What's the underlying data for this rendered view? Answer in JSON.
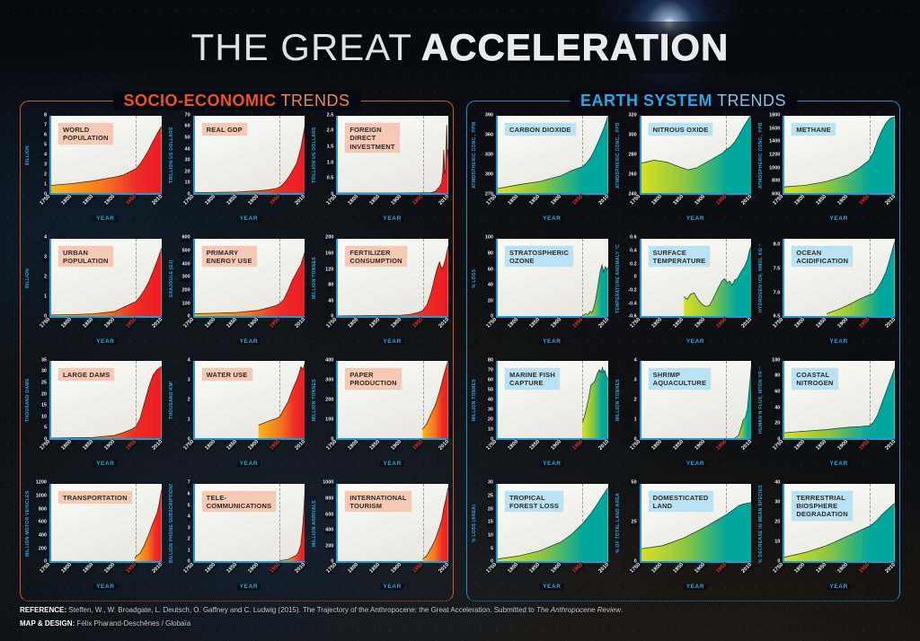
{
  "title": {
    "prefix": "THE GREAT",
    "emphasis": "ACCELERATION"
  },
  "sections": [
    {
      "id": "socio",
      "title_bold": "SOCIO-ECONOMIC",
      "title_light": "TRENDS",
      "accent": "#e8571c",
      "chip_bg": "#f5c9b3",
      "fill_stops": [
        "#fcb61a",
        "#f4711f",
        "#ec1c24"
      ]
    },
    {
      "id": "earth",
      "title_bold": "EARTH SYSTEM",
      "title_light": "TRENDS",
      "accent": "#1b9cd8",
      "chip_bg": "#b9e2f4",
      "fill_stops": [
        "#d9e021",
        "#8cc63f",
        "#00a79d"
      ]
    }
  ],
  "axis": {
    "x_label": "YEAR",
    "x_ticks": [
      1750,
      1800,
      1850,
      1900,
      1950,
      2010
    ],
    "x_range": [
      1750,
      2010
    ],
    "highlight_year": 1950,
    "highlight_color": "#ef3524",
    "dashed_line_year": 1950
  },
  "footer": {
    "ref_label": "REFERENCE:",
    "ref_text": " Steffen, W., W. Broadgate, L. Deutsch, O. Gaffney and C. Ludwig (2015). The Trajectory of the Anthropocene: the Great Acceleration. Submitted to ",
    "ref_italic": "The Anthropocene Review",
    "ref_end": ".",
    "design_label": "MAP & DESIGN:",
    "design_text": " Félix Pharand-Deschênes / Globaïa"
  },
  "chart_data": [
    {
      "type": "area",
      "panel": "socio",
      "title": "WORLD\nPOPULATION",
      "ylabel": "BILLION",
      "ylim": [
        0,
        8
      ],
      "yticks": [
        "0",
        "1",
        "2",
        "3",
        "4",
        "5",
        "6",
        "7",
        "8"
      ],
      "x": [
        1750,
        1800,
        1850,
        1900,
        1920,
        1950,
        1960,
        1970,
        1980,
        1990,
        2000,
        2010
      ],
      "y": [
        0.79,
        0.98,
        1.26,
        1.65,
        1.86,
        2.52,
        3.02,
        3.7,
        4.45,
        5.33,
        6.14,
        6.9
      ]
    },
    {
      "type": "area",
      "panel": "socio",
      "title": "REAL GDP",
      "ylabel": "TRILLION US DOLLARS",
      "ylim": [
        0,
        70
      ],
      "yticks": [
        "0",
        "10",
        "20",
        "30",
        "40",
        "50",
        "60",
        "70"
      ],
      "x": [
        1750,
        1800,
        1850,
        1900,
        1920,
        1940,
        1950,
        1960,
        1970,
        1980,
        1990,
        2000,
        2010
      ],
      "y": [
        0.4,
        0.6,
        0.9,
        2.0,
        2.7,
        4.0,
        5.3,
        8.8,
        13.8,
        20,
        27,
        41,
        62
      ]
    },
    {
      "type": "area",
      "panel": "socio",
      "title": "FOREIGN\nDIRECT\nINVESTMENT",
      "ylabel": "TRILLION US DOLLARS",
      "ylim": [
        0,
        2.5
      ],
      "yticks": [
        "0",
        "0.5",
        "1.0",
        "1.5",
        "2.0",
        "2.5"
      ],
      "x": [
        1750,
        1900,
        1950,
        1970,
        1980,
        1990,
        1995,
        1998,
        2000,
        2002,
        2004,
        2007,
        2009,
        2010
      ],
      "y": [
        0,
        0,
        0.005,
        0.01,
        0.05,
        0.2,
        0.33,
        0.7,
        1.4,
        0.6,
        0.75,
        2.2,
        1.15,
        1.4
      ]
    },
    {
      "type": "area",
      "panel": "socio",
      "title": "URBAN\nPOPULATION",
      "ylabel": "BILLION",
      "ylim": [
        0,
        4
      ],
      "yticks": [
        "0",
        "1",
        "2",
        "3",
        "4"
      ],
      "x": [
        1750,
        1800,
        1850,
        1900,
        1950,
        1960,
        1970,
        1980,
        1990,
        2000,
        2010
      ],
      "y": [
        0.05,
        0.07,
        0.11,
        0.24,
        0.75,
        1.02,
        1.35,
        1.75,
        2.29,
        2.86,
        3.5
      ]
    },
    {
      "type": "area",
      "panel": "socio",
      "title": "PRIMARY\nENERGY USE",
      "ylabel": "EXAJOULE (EJ)",
      "ylim": [
        0,
        600
      ],
      "yticks": [
        "0",
        "100",
        "200",
        "300",
        "400",
        "500",
        "600"
      ],
      "x": [
        1750,
        1800,
        1850,
        1900,
        1925,
        1940,
        1950,
        1960,
        1970,
        1980,
        1990,
        2000,
        2010
      ],
      "y": [
        18,
        22,
        28,
        44,
        65,
        80,
        95,
        130,
        200,
        280,
        340,
        400,
        505
      ]
    },
    {
      "type": "area",
      "panel": "socio",
      "title": "FERTILIZER\nCONSUMPTION",
      "ylabel": "MILLION TONNES",
      "ylim": [
        0,
        200
      ],
      "yticks": [
        "0",
        "40",
        "80",
        "120",
        "160",
        "200"
      ],
      "x": [
        1750,
        1900,
        1920,
        1940,
        1950,
        1960,
        1970,
        1980,
        1985,
        1990,
        1995,
        2000,
        2005,
        2010
      ],
      "y": [
        0,
        2,
        4,
        9,
        14,
        28,
        60,
        105,
        125,
        140,
        122,
        132,
        152,
        180
      ]
    },
    {
      "type": "area",
      "panel": "socio",
      "title": "LARGE DAMS",
      "ylabel": "THOUSAND DAMS",
      "ylim": [
        0,
        35
      ],
      "yticks": [
        "0",
        "5",
        "10",
        "15",
        "20",
        "25",
        "30",
        "35"
      ],
      "x": [
        1750,
        1850,
        1900,
        1920,
        1940,
        1950,
        1960,
        1970,
        1980,
        1990,
        2000,
        2010
      ],
      "y": [
        0,
        0.3,
        1.2,
        2.5,
        4,
        5.2,
        9,
        16,
        23,
        28.5,
        31,
        32.5
      ]
    },
    {
      "type": "area",
      "panel": "socio",
      "title": "WATER USE",
      "ylabel": "THOUSAND KM³",
      "ylim": [
        0,
        4
      ],
      "yticks": [
        "0",
        "1",
        "2",
        "3",
        "4"
      ],
      "x": [
        1900,
        1920,
        1940,
        1950,
        1960,
        1970,
        1980,
        1990,
        1995,
        2000,
        2005,
        2010
      ],
      "y": [
        0.67,
        0.85,
        1.0,
        1.1,
        1.5,
        1.9,
        2.5,
        3.0,
        3.3,
        3.7,
        3.55,
        3.95
      ]
    },
    {
      "type": "area",
      "panel": "socio",
      "title": "PAPER\nPRODUCTION",
      "ylabel": "MILLION TONNES",
      "ylim": [
        0,
        400
      ],
      "yticks": [
        "0",
        "100",
        "200",
        "300",
        "400"
      ],
      "x": [
        1950,
        1960,
        1970,
        1980,
        1990,
        2000,
        2010
      ],
      "y": [
        45,
        75,
        125,
        170,
        240,
        325,
        400
      ]
    },
    {
      "type": "area",
      "panel": "socio",
      "title": "TRANSPORTATION",
      "ylabel": "MILLION MOTOR VEHICLES",
      "ylim": [
        0,
        1200
      ],
      "yticks": [
        "0",
        "200",
        "400",
        "600",
        "800",
        "1000",
        "1200"
      ],
      "x": [
        1948,
        1950,
        1960,
        1970,
        1980,
        1990,
        2000,
        2005,
        2010
      ],
      "y": [
        40,
        70,
        125,
        250,
        410,
        590,
        750,
        900,
        1100
      ]
    },
    {
      "type": "area",
      "panel": "socio",
      "title": "TELE-\nCOMMUNICATIONS",
      "ylabel": "BILLION PHONE SUBSCRIPTIONS",
      "ylim": [
        0,
        7
      ],
      "yticks": [
        "0",
        "1",
        "2",
        "3",
        "4",
        "5",
        "6",
        "7"
      ],
      "x": [
        1950,
        1960,
        1970,
        1980,
        1990,
        1995,
        2000,
        2005,
        2010
      ],
      "y": [
        0.05,
        0.09,
        0.15,
        0.35,
        0.55,
        0.9,
        1.5,
        3.5,
        6.6
      ]
    },
    {
      "type": "area",
      "panel": "socio",
      "title": "INTERNATIONAL\nTOURISM",
      "ylabel": "MILLION ARRIVALS",
      "ylim": [
        0,
        1000
      ],
      "yticks": [
        "0",
        "200",
        "400",
        "600",
        "800",
        "1000"
      ],
      "x": [
        1950,
        1960,
        1970,
        1980,
        1990,
        1995,
        2000,
        2005,
        2010
      ],
      "y": [
        25,
        70,
        170,
        280,
        440,
        530,
        690,
        800,
        950
      ]
    },
    {
      "type": "area",
      "panel": "earth",
      "title": "CARBON DIOXIDE",
      "ylabel": "ATMOSPHERIC CONC., PPM",
      "ylim": [
        270,
        390
      ],
      "yticks": [
        "270",
        "300",
        "330",
        "360",
        "390"
      ],
      "x": [
        1750,
        1800,
        1850,
        1900,
        1925,
        1950,
        1960,
        1970,
        1980,
        1990,
        2000,
        2010
      ],
      "y": [
        277,
        283,
        288,
        297,
        305,
        311,
        317,
        326,
        339,
        354,
        370,
        389
      ]
    },
    {
      "type": "area",
      "panel": "earth",
      "title": "NITROUS OXIDE",
      "ylabel": "ATMOSPHERIC CONC., PPB",
      "ylim": [
        240,
        320
      ],
      "yticks": [
        "240",
        "260",
        "280",
        "300",
        "320"
      ],
      "x": [
        1750,
        1780,
        1810,
        1840,
        1860,
        1880,
        1900,
        1920,
        1940,
        1950,
        1960,
        1970,
        1980,
        1990,
        2000,
        2010
      ],
      "y": [
        271,
        274,
        272,
        267,
        264,
        266,
        271,
        276,
        281,
        285,
        288,
        293,
        300,
        308,
        315,
        322
      ]
    },
    {
      "type": "area",
      "panel": "earth",
      "title": "METHANE",
      "ylabel": "ATMOSPHERIC CONC., PPB",
      "ylim": [
        600,
        1800
      ],
      "yticks": [
        "600",
        "800",
        "1000",
        "1200",
        "1400",
        "1600",
        "1800"
      ],
      "x": [
        1750,
        1800,
        1850,
        1900,
        1925,
        1950,
        1960,
        1970,
        1980,
        1990,
        2000,
        2010
      ],
      "y": [
        695,
        720,
        780,
        880,
        980,
        1110,
        1230,
        1420,
        1570,
        1690,
        1760,
        1780
      ]
    },
    {
      "type": "area",
      "panel": "earth",
      "title": "STRATOSPHERIC\nOZONE",
      "ylabel": "% LOSS",
      "ylim": [
        0,
        100
      ],
      "yticks": [
        "0",
        "20",
        "40",
        "60",
        "80",
        "100"
      ],
      "x": [
        1950,
        1958,
        1963,
        1968,
        1972,
        1976,
        1980,
        1984,
        1988,
        1992,
        1996,
        2000,
        2004,
        2008,
        2010
      ],
      "y": [
        0,
        3,
        1.5,
        6,
        4,
        10,
        18,
        30,
        45,
        58,
        66,
        57,
        64,
        60,
        63
      ]
    },
    {
      "type": "area",
      "panel": "earth",
      "title": "SURFACE\nTEMPERATURE",
      "ylabel": "TEMPERATURE ANOMALY °C",
      "ylim": [
        -0.6,
        0.6
      ],
      "yticks": [
        "-0.6",
        "-0.4",
        "-0.2",
        "0",
        "0.2",
        "0.4",
        "0.6"
      ],
      "x": [
        1850,
        1858,
        1866,
        1874,
        1882,
        1890,
        1900,
        1910,
        1920,
        1930,
        1940,
        1946,
        1952,
        1958,
        1964,
        1970,
        1976,
        1982,
        1988,
        1994,
        2000,
        2005,
        2010
      ],
      "y": [
        -0.3,
        -0.34,
        -0.26,
        -0.24,
        -0.33,
        -0.4,
        -0.45,
        -0.44,
        -0.32,
        -0.18,
        -0.05,
        -0.02,
        -0.08,
        -0.06,
        -0.12,
        -0.04,
        -0.02,
        0.05,
        0.12,
        0.18,
        0.28,
        0.42,
        0.5
      ]
    },
    {
      "type": "area",
      "panel": "earth",
      "title": "OCEAN\nACIDIFICATION",
      "ylabel": "HYDROGEN ION, NMOL KG⁻¹",
      "ylim": [
        6.5,
        8.15
      ],
      "yticks": [
        "6.5",
        "7.0",
        "7.5",
        "8.0"
      ],
      "x": [
        1850,
        1875,
        1900,
        1925,
        1950,
        1960,
        1970,
        1980,
        1990,
        2000,
        2010
      ],
      "y": [
        6.55,
        6.63,
        6.73,
        6.85,
        6.95,
        6.98,
        7.1,
        7.25,
        7.45,
        7.75,
        8.08
      ]
    },
    {
      "type": "area",
      "panel": "earth",
      "title": "MARINE FISH\nCAPTURE",
      "ylabel": "MILLION TONNES",
      "ylim": [
        0,
        80
      ],
      "yticks": [
        "0",
        "10",
        "20",
        "30",
        "40",
        "50",
        "60",
        "70",
        "80"
      ],
      "x": [
        1950,
        1955,
        1960,
        1965,
        1970,
        1975,
        1980,
        1985,
        1990,
        1994,
        1997,
        2000,
        2003,
        2006,
        2010
      ],
      "y": [
        16,
        23,
        32,
        42,
        55,
        57,
        60,
        67,
        71,
        68,
        73,
        68,
        70,
        64,
        62
      ]
    },
    {
      "type": "area",
      "panel": "earth",
      "title": "SHRIMP\nAQUACULTURE",
      "ylabel": "MILLION TONNES",
      "ylim": [
        0,
        4
      ],
      "yticks": [
        "0",
        "1",
        "2",
        "3",
        "4"
      ],
      "x": [
        1970,
        1975,
        1980,
        1985,
        1990,
        1995,
        2000,
        2005,
        2010
      ],
      "y": [
        0.02,
        0.06,
        0.18,
        0.55,
        0.95,
        1.05,
        1.5,
        2.7,
        3.9
      ]
    },
    {
      "type": "area",
      "panel": "earth",
      "title": "COASTAL\nNITROGEN",
      "ylabel": "HUMAN N FLUX, MTON YR⁻¹",
      "ylim": [
        0,
        100
      ],
      "yticks": [
        "0",
        "20",
        "40",
        "60",
        "80",
        "100"
      ],
      "x": [
        1750,
        1800,
        1850,
        1900,
        1930,
        1950,
        1960,
        1970,
        1980,
        1990,
        2000,
        2010
      ],
      "y": [
        7,
        9,
        11,
        14,
        15,
        16,
        20,
        30,
        45,
        60,
        75,
        90
      ]
    },
    {
      "type": "area",
      "panel": "earth",
      "title": "TROPICAL\nFOREST LOSS",
      "ylabel": "% LOSS (AREA)",
      "ylim": [
        0,
        30
      ],
      "yticks": [
        "0",
        "5",
        "10",
        "15",
        "20",
        "25",
        "30"
      ],
      "x": [
        1750,
        1800,
        1850,
        1900,
        1925,
        1950,
        1960,
        1970,
        1980,
        1990,
        2000,
        2010
      ],
      "y": [
        0.8,
        2,
        4,
        7.5,
        10.5,
        14.5,
        16.5,
        18.5,
        21,
        23.5,
        26,
        28.5
      ]
    },
    {
      "type": "area",
      "panel": "earth",
      "title": "DOMESTICATED\nLAND",
      "ylabel": "% OF TOTAL LAND AREA",
      "ylim": [
        0,
        50
      ],
      "yticks": [
        "0",
        "25",
        "50"
      ],
      "x": [
        1750,
        1800,
        1850,
        1900,
        1925,
        1950,
        1960,
        1970,
        1980,
        1990,
        2000,
        2010
      ],
      "y": [
        8,
        10,
        15,
        22,
        26,
        30,
        32,
        34,
        36,
        37,
        37.5,
        38
      ]
    },
    {
      "type": "area",
      "panel": "earth",
      "title": "TERRESTRIAL\nBIOSPHERE\nDEGRADATION",
      "ylabel": "% DECREASE IN MEAN SPECIES ABUNDANCE",
      "ylim": [
        0,
        40
      ],
      "yticks": [
        "0",
        "10",
        "20",
        "30",
        "40"
      ],
      "x": [
        1750,
        1800,
        1850,
        1900,
        1925,
        1950,
        1960,
        1970,
        1980,
        1990,
        2000,
        2010
      ],
      "y": [
        2,
        4.5,
        8,
        13,
        15.5,
        18,
        19.5,
        21.5,
        24,
        26,
        28,
        30
      ]
    }
  ]
}
